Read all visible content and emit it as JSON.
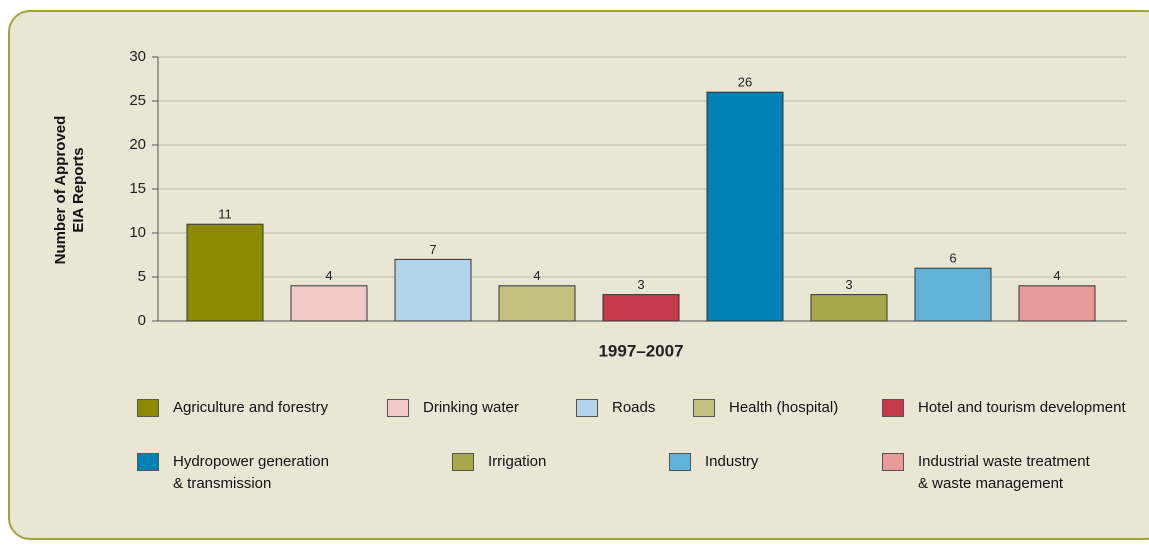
{
  "chart_data": {
    "type": "bar",
    "y_label": "Number of Approved\nEIA Reports",
    "x_label": "1997–2007",
    "categories": [
      "Agriculture and forestry",
      "Drinking water",
      "Roads",
      "Health (hospital)",
      "Hotel and tourism development",
      "Hydropower generation\n& transmission",
      "Irrigation",
      "Industry",
      "Industrial waste treatment\n& waste management"
    ],
    "values": [
      11,
      4,
      7,
      4,
      3,
      26,
      3,
      6,
      4
    ],
    "colors": [
      "#8b8a00",
      "#f2c9c4",
      "#b3d4ea",
      "#c4c180",
      "#c73a4d",
      "#0080b3",
      "#a8a84a",
      "#62b3d8",
      "#e8999a"
    ],
    "ylim": [
      0,
      30
    ],
    "yticks": [
      0,
      5,
      10,
      15,
      20,
      25,
      30
    ],
    "grid": true
  }
}
